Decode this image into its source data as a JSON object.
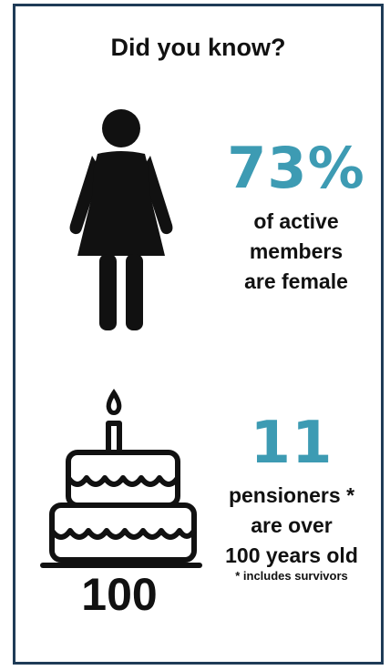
{
  "title": "Did you know?",
  "accent_color": "#3d9bb3",
  "stat_female": {
    "value": "73%",
    "description_lines": [
      "of active",
      "members",
      "are female"
    ],
    "icon": "woman-icon"
  },
  "stat_centenarians": {
    "value": "11",
    "description_lines": [
      "pensioners *",
      "are over",
      "100 years old"
    ],
    "footnote": "* includes survivors",
    "icon": "birthday-cake-icon",
    "cake_label": "100"
  }
}
